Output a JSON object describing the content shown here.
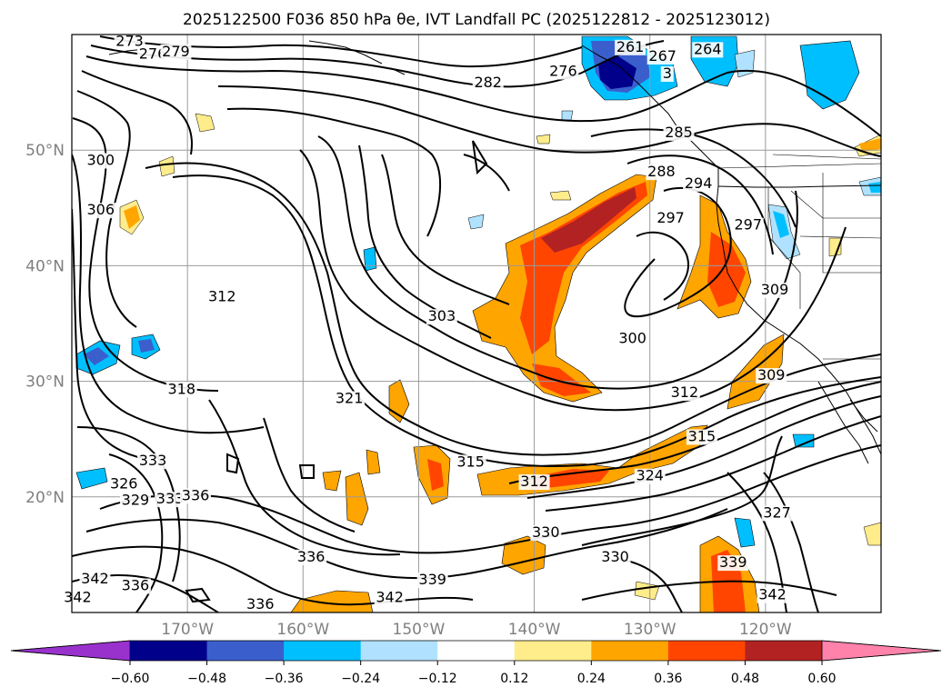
{
  "figure": {
    "title": "2025122500 F036 850 hPa θe, IVT Landfall PC (2025122812 - 2025123012)"
  },
  "map": {
    "lon_range": [
      -180,
      -110
    ],
    "lat_range": [
      10,
      60
    ],
    "lat_ticks": [
      {
        "value": 50,
        "label": "50°N"
      },
      {
        "value": 40,
        "label": "40°N"
      },
      {
        "value": 30,
        "label": "30°N"
      },
      {
        "value": 20,
        "label": "20°N"
      }
    ],
    "lon_ticks": [
      {
        "value": -170,
        "label": "170°W"
      },
      {
        "value": -160,
        "label": "160°W"
      },
      {
        "value": -150,
        "label": "150°W"
      },
      {
        "value": -140,
        "label": "140°W"
      },
      {
        "value": -130,
        "label": "130°W"
      },
      {
        "value": -120,
        "label": "120°W"
      }
    ],
    "gridlines": true
  },
  "chart_data": {
    "type": "heatmap",
    "fields": [
      "850 hPa θe contours (K)",
      "IVT landfall principal component (shaded)"
    ],
    "contour_labels": [
      {
        "text": "273",
        "lon": -175.0,
        "lat": 59.1
      },
      {
        "text": "276",
        "lon": -173.0,
        "lat": 58.0
      },
      {
        "text": "279",
        "lon": -171.0,
        "lat": 58.2
      },
      {
        "text": "282",
        "lon": -144.0,
        "lat": 55.5
      },
      {
        "text": "276",
        "lon": -137.5,
        "lat": 56.5
      },
      {
        "text": "261",
        "lon": -131.7,
        "lat": 58.6
      },
      {
        "text": "267",
        "lon": -128.9,
        "lat": 57.8
      },
      {
        "text": "264",
        "lon": -125.0,
        "lat": 58.4
      },
      {
        "text": "3",
        "lon": -128.5,
        "lat": 56.3
      },
      {
        "text": "285",
        "lon": -127.5,
        "lat": 51.2
      },
      {
        "text": "288",
        "lon": -129.0,
        "lat": 47.8
      },
      {
        "text": "294",
        "lon": -125.8,
        "lat": 46.8
      },
      {
        "text": "297",
        "lon": -128.2,
        "lat": 43.8
      },
      {
        "text": "297",
        "lon": -121.5,
        "lat": 43.2
      },
      {
        "text": "300",
        "lon": -177.5,
        "lat": 48.8
      },
      {
        "text": "306",
        "lon": -177.5,
        "lat": 44.5
      },
      {
        "text": "312",
        "lon": -167.0,
        "lat": 37.0
      },
      {
        "text": "303",
        "lon": -148.0,
        "lat": 35.3
      },
      {
        "text": "300",
        "lon": -131.5,
        "lat": 33.4
      },
      {
        "text": "309",
        "lon": -119.2,
        "lat": 37.6
      },
      {
        "text": "318",
        "lon": -170.5,
        "lat": 29.0
      },
      {
        "text": "321",
        "lon": -156.0,
        "lat": 28.2
      },
      {
        "text": "312",
        "lon": -127.0,
        "lat": 28.7
      },
      {
        "text": "309",
        "lon": -119.5,
        "lat": 30.2
      },
      {
        "text": "315",
        "lon": -145.5,
        "lat": 22.7
      },
      {
        "text": "312",
        "lon": -140.0,
        "lat": 21.0
      },
      {
        "text": "315",
        "lon": -125.5,
        "lat": 24.9
      },
      {
        "text": "324",
        "lon": -130.0,
        "lat": 21.5
      },
      {
        "text": "333",
        "lon": -173.0,
        "lat": 22.8
      },
      {
        "text": "326",
        "lon": -175.5,
        "lat": 20.8
      },
      {
        "text": "329",
        "lon": -174.5,
        "lat": 19.4
      },
      {
        "text": "333",
        "lon": -171.5,
        "lat": 19.5
      },
      {
        "text": "336",
        "lon": -169.3,
        "lat": 19.8
      },
      {
        "text": "327",
        "lon": -119.0,
        "lat": 18.3
      },
      {
        "text": "330",
        "lon": -139.0,
        "lat": 16.6
      },
      {
        "text": "330",
        "lon": -133.0,
        "lat": 14.5
      },
      {
        "text": "336",
        "lon": -159.3,
        "lat": 14.5
      },
      {
        "text": "339",
        "lon": -148.8,
        "lat": 12.5
      },
      {
        "text": "339",
        "lon": -122.8,
        "lat": 14.0
      },
      {
        "text": "342",
        "lon": -178.0,
        "lat": 12.6
      },
      {
        "text": "336",
        "lon": -174.5,
        "lat": 12.0
      },
      {
        "text": "342",
        "lon": -179.5,
        "lat": 11.0
      },
      {
        "text": "342",
        "lon": -152.5,
        "lat": 11.0
      },
      {
        "text": "336",
        "lon": -163.7,
        "lat": 10.4
      },
      {
        "text": "342",
        "lon": -119.4,
        "lat": 11.2
      }
    ],
    "colorbar": {
      "ticks": [
        "-0.60",
        "-0.48",
        "-0.36",
        "-0.24",
        "-0.12",
        "0.12",
        "0.24",
        "0.36",
        "0.48",
        "0.60"
      ],
      "levels": [
        -0.6,
        -0.48,
        -0.36,
        -0.24,
        -0.12,
        0.12,
        0.24,
        0.36,
        0.48,
        0.6
      ],
      "colors": [
        "#9932cc",
        "#00008b",
        "#3a5fcd",
        "#00bfff",
        "#b0e2ff",
        "#ffffff",
        "#ffec8b",
        "#ffa500",
        "#ff4500",
        "#b22222",
        "#ff82ab"
      ],
      "extend": "both"
    }
  }
}
